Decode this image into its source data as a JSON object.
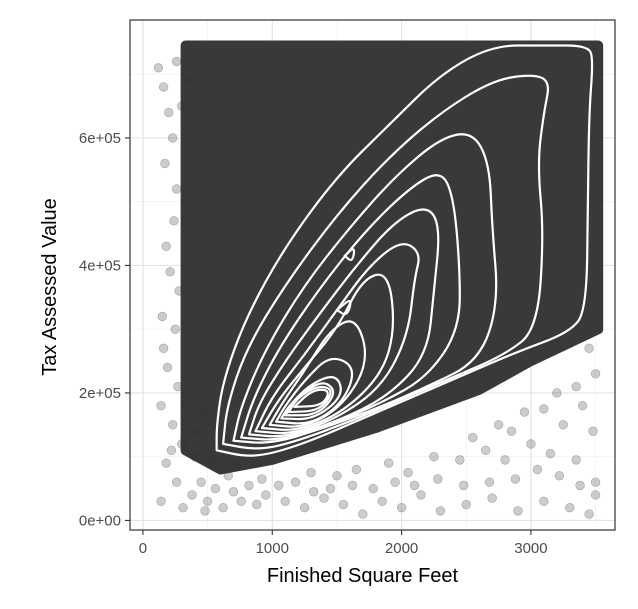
{
  "chart_data": {
    "type": "scatter",
    "title": "",
    "xlabel": "Finished Square Feet",
    "ylabel": "Tax Assessed Value",
    "xlim": [
      -100,
      3650
    ],
    "ylim": [
      -15000,
      785000
    ],
    "x_ticks": [
      0,
      1000,
      2000,
      3000
    ],
    "x_tick_labels": [
      "0",
      "1000",
      "2000",
      "3000"
    ],
    "y_ticks": [
      0,
      200000,
      400000,
      600000
    ],
    "y_tick_labels": [
      "0e+00",
      "2e+05",
      "4e+05",
      "6e+05"
    ],
    "grid": true,
    "legend": "none",
    "point_color": "#333333",
    "point_alpha": 0.2,
    "contour_color": "#ffffff",
    "dense_region": [
      [
        330,
        745000
      ],
      [
        3520,
        745000
      ],
      [
        3520,
        300000
      ],
      [
        3000,
        250000
      ],
      [
        2600,
        205000
      ],
      [
        2200,
        175000
      ],
      [
        1800,
        145000
      ],
      [
        1400,
        120000
      ],
      [
        1000,
        95000
      ],
      [
        600,
        80000
      ],
      [
        330,
        110000
      ]
    ],
    "scatter_points": [
      [
        120,
        710000
      ],
      [
        160,
        680000
      ],
      [
        200,
        640000
      ],
      [
        170,
        560000
      ],
      [
        230,
        600000
      ],
      [
        260,
        520000
      ],
      [
        180,
        430000
      ],
      [
        240,
        470000
      ],
      [
        210,
        390000
      ],
      [
        280,
        360000
      ],
      [
        150,
        320000
      ],
      [
        250,
        300000
      ],
      [
        190,
        240000
      ],
      [
        270,
        210000
      ],
      [
        140,
        180000
      ],
      [
        230,
        150000
      ],
      [
        300,
        120000
      ],
      [
        180,
        90000
      ],
      [
        260,
        60000
      ],
      [
        140,
        30000
      ],
      [
        310,
        20000
      ],
      [
        220,
        110000
      ],
      [
        340,
        180000
      ],
      [
        160,
        270000
      ],
      [
        300,
        650000
      ],
      [
        260,
        720000
      ],
      [
        350,
        690000
      ],
      [
        400,
        100000
      ],
      [
        450,
        60000
      ],
      [
        380,
        40000
      ],
      [
        500,
        30000
      ],
      [
        560,
        50000
      ],
      [
        620,
        20000
      ],
      [
        700,
        45000
      ],
      [
        760,
        30000
      ],
      [
        480,
        15000
      ],
      [
        880,
        25000
      ],
      [
        950,
        40000
      ],
      [
        1100,
        30000
      ],
      [
        1250,
        20000
      ],
      [
        1400,
        35000
      ],
      [
        1550,
        25000
      ],
      [
        1700,
        10000
      ],
      [
        1850,
        30000
      ],
      [
        2000,
        20000
      ],
      [
        2150,
        40000
      ],
      [
        2300,
        15000
      ],
      [
        2500,
        25000
      ],
      [
        2700,
        35000
      ],
      [
        2900,
        15000
      ],
      [
        3100,
        30000
      ],
      [
        3300,
        20000
      ],
      [
        3450,
        10000
      ],
      [
        3500,
        40000
      ],
      [
        1300,
        75000
      ],
      [
        1500,
        70000
      ],
      [
        1650,
        80000
      ],
      [
        1900,
        90000
      ],
      [
        2050,
        75000
      ],
      [
        2250,
        100000
      ],
      [
        2450,
        95000
      ],
      [
        2650,
        110000
      ],
      [
        2800,
        95000
      ],
      [
        3000,
        120000
      ],
      [
        3150,
        105000
      ],
      [
        3350,
        95000
      ],
      [
        3480,
        140000
      ],
      [
        3400,
        180000
      ],
      [
        3250,
        150000
      ],
      [
        2950,
        170000
      ],
      [
        2750,
        150000
      ],
      [
        2550,
        130000
      ],
      [
        3500,
        230000
      ],
      [
        3450,
        270000
      ],
      [
        3350,
        210000
      ],
      [
        3200,
        200000
      ],
      [
        3100,
        175000
      ],
      [
        2850,
        140000
      ],
      [
        3500,
        60000
      ],
      [
        3380,
        55000
      ],
      [
        3220,
        70000
      ],
      [
        3050,
        80000
      ],
      [
        2880,
        65000
      ],
      [
        2680,
        60000
      ],
      [
        2480,
        55000
      ],
      [
        2280,
        65000
      ],
      [
        2100,
        55000
      ],
      [
        1950,
        60000
      ],
      [
        1780,
        50000
      ],
      [
        1620,
        55000
      ],
      [
        1450,
        50000
      ],
      [
        1320,
        45000
      ],
      [
        1180,
        60000
      ],
      [
        1050,
        55000
      ],
      [
        920,
        65000
      ],
      [
        820,
        55000
      ],
      [
        660,
        70000
      ],
      [
        720,
        85000
      ],
      [
        540,
        95000
      ],
      [
        600,
        120000
      ],
      [
        420,
        140000
      ],
      [
        470,
        170000
      ]
    ],
    "contours": [
      [
        [
          570,
          110000
        ],
        [
          800,
          100000
        ],
        [
          1000,
          105000
        ],
        [
          1300,
          125000
        ],
        [
          1700,
          160000
        ],
        [
          2100,
          195000
        ],
        [
          2500,
          230000
        ],
        [
          2900,
          265000
        ],
        [
          3300,
          295000
        ],
        [
          3430,
          330000
        ],
        [
          3440,
          500000
        ],
        [
          3450,
          640000
        ],
        [
          3480,
          720000
        ],
        [
          3450,
          745000
        ],
        [
          3100,
          745000
        ],
        [
          2700,
          745000
        ],
        [
          2300,
          700000
        ],
        [
          1900,
          620000
        ],
        [
          1500,
          540000
        ],
        [
          1100,
          430000
        ],
        [
          800,
          320000
        ],
        [
          620,
          220000
        ],
        [
          570,
          150000
        ],
        [
          570,
          110000
        ]
      ],
      [
        [
          620,
          120000
        ],
        [
          900,
          110000
        ],
        [
          1200,
          125000
        ],
        [
          1600,
          155000
        ],
        [
          2000,
          190000
        ],
        [
          2400,
          225000
        ],
        [
          2800,
          260000
        ],
        [
          3050,
          300000
        ],
        [
          3100,
          450000
        ],
        [
          3050,
          560000
        ],
        [
          3100,
          640000
        ],
        [
          3150,
          690000
        ],
        [
          3000,
          700000
        ],
        [
          2700,
          690000
        ],
        [
          2300,
          640000
        ],
        [
          1900,
          570000
        ],
        [
          1500,
          480000
        ],
        [
          1100,
          370000
        ],
        [
          800,
          270000
        ],
        [
          650,
          180000
        ],
        [
          620,
          120000
        ]
      ],
      [
        [
          700,
          125000
        ],
        [
          1000,
          120000
        ],
        [
          1400,
          145000
        ],
        [
          1800,
          175000
        ],
        [
          2200,
          210000
        ],
        [
          2600,
          250000
        ],
        [
          2750,
          340000
        ],
        [
          2700,
          460000
        ],
        [
          2680,
          560000
        ],
        [
          2550,
          610000
        ],
        [
          2300,
          600000
        ],
        [
          1950,
          540000
        ],
        [
          1600,
          460000
        ],
        [
          1250,
          370000
        ],
        [
          950,
          270000
        ],
        [
          760,
          180000
        ],
        [
          700,
          125000
        ]
      ],
      [
        [
          760,
          130000
        ],
        [
          1050,
          125000
        ],
        [
          1450,
          150000
        ],
        [
          1850,
          185000
        ],
        [
          2200,
          225000
        ],
        [
          2450,
          300000
        ],
        [
          2450,
          400000
        ],
        [
          2400,
          510000
        ],
        [
          2300,
          550000
        ],
        [
          2050,
          520000
        ],
        [
          1700,
          450000
        ],
        [
          1350,
          360000
        ],
        [
          1050,
          270000
        ],
        [
          850,
          190000
        ],
        [
          760,
          130000
        ]
      ],
      [
        [
          820,
          135000
        ],
        [
          1100,
          130000
        ],
        [
          1500,
          155000
        ],
        [
          1900,
          195000
        ],
        [
          2200,
          260000
        ],
        [
          2250,
          360000
        ],
        [
          2300,
          460000
        ],
        [
          2200,
          495000
        ],
        [
          1950,
          470000
        ],
        [
          1650,
          400000
        ],
        [
          1350,
          320000
        ],
        [
          1100,
          250000
        ],
        [
          900,
          185000
        ],
        [
          820,
          135000
        ]
      ],
      [
        [
          870,
          140000
        ],
        [
          1150,
          135000
        ],
        [
          1500,
          160000
        ],
        [
          1850,
          210000
        ],
        [
          2050,
          290000
        ],
        [
          2100,
          380000
        ],
        [
          2150,
          420000
        ],
        [
          2000,
          440000
        ],
        [
          1750,
          400000
        ],
        [
          1500,
          330000
        ],
        [
          1250,
          260000
        ],
        [
          1000,
          195000
        ],
        [
          870,
          140000
        ]
      ],
      [
        [
          920,
          145000
        ],
        [
          1200,
          140000
        ],
        [
          1550,
          170000
        ],
        [
          1850,
          230000
        ],
        [
          1950,
          300000
        ],
        [
          1900,
          390000
        ],
        [
          1700,
          380000
        ],
        [
          1500,
          300000
        ],
        [
          1250,
          240000
        ],
        [
          1050,
          190000
        ],
        [
          920,
          145000
        ]
      ],
      [
        [
          980,
          150000
        ],
        [
          1250,
          145000
        ],
        [
          1550,
          180000
        ],
        [
          1750,
          250000
        ],
        [
          1650,
          320000
        ],
        [
          1450,
          300000
        ],
        [
          1250,
          235000
        ],
        [
          1080,
          185000
        ],
        [
          980,
          150000
        ]
      ],
      [
        [
          1030,
          155000
        ],
        [
          1300,
          150000
        ],
        [
          1550,
          185000
        ],
        [
          1650,
          240000
        ],
        [
          1450,
          260000
        ],
        [
          1250,
          220000
        ],
        [
          1100,
          180000
        ],
        [
          1030,
          155000
        ]
      ],
      [
        [
          1070,
          160000
        ],
        [
          1320,
          158000
        ],
        [
          1550,
          195000
        ],
        [
          1500,
          230000
        ],
        [
          1300,
          215000
        ],
        [
          1130,
          180000
        ],
        [
          1070,
          160000
        ]
      ],
      [
        [
          1100,
          165000
        ],
        [
          1350,
          165000
        ],
        [
          1500,
          200000
        ],
        [
          1400,
          220000
        ],
        [
          1230,
          200000
        ],
        [
          1100,
          165000
        ]
      ],
      [
        [
          1130,
          170000
        ],
        [
          1370,
          172000
        ],
        [
          1480,
          205000
        ],
        [
          1350,
          212000
        ],
        [
          1180,
          190000
        ],
        [
          1130,
          170000
        ]
      ],
      [
        [
          1170,
          178000
        ],
        [
          1390,
          180000
        ],
        [
          1450,
          205000
        ],
        [
          1310,
          205000
        ],
        [
          1170,
          178000
        ]
      ],
      [
        [
          1560,
          415000
        ],
        [
          1640,
          430000
        ],
        [
          1620,
          405000
        ],
        [
          1560,
          415000
        ]
      ],
      [
        [
          1500,
          330000
        ],
        [
          1620,
          350000
        ],
        [
          1580,
          320000
        ],
        [
          1500,
          330000
        ]
      ]
    ]
  }
}
